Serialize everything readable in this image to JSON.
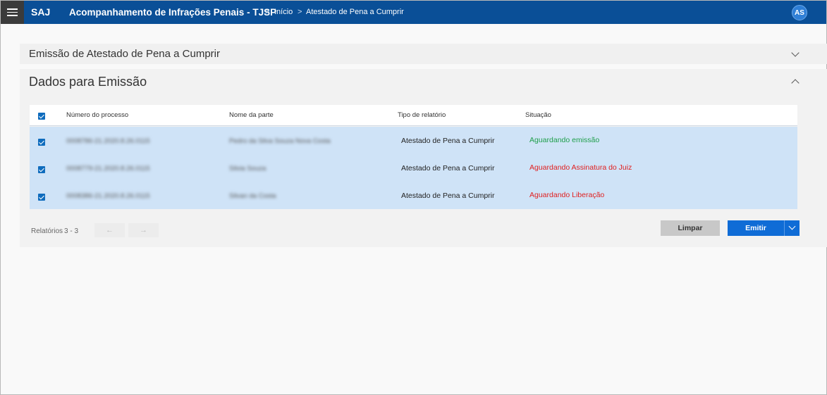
{
  "header": {
    "brand": "SAJ",
    "title": "Acompanhamento de Infrações Penais - TJSP",
    "breadcrumb": [
      {
        "label": "Início"
      },
      {
        "label": "Atestado de Pena a Cumprir"
      }
    ],
    "separator": ">",
    "avatar": "AS"
  },
  "panels": {
    "emissao_title": "Emissão de Atestado de Pena a Cumprir",
    "dados_title": "Dados para Emissão"
  },
  "table": {
    "headers": [
      "Número do processo",
      "Nome da parte",
      "Tipo de relatório",
      "Situação"
    ],
    "rows": [
      {
        "processo": "0008786-21.2020.8.26.0115",
        "parte": "Pedro da Silva Souza Nova Costa",
        "tipo": "Atestado de Pena a Cumprir",
        "situacao": "Aguardando emissão",
        "status_color": "#1e9e4a"
      },
      {
        "processo": "0008779-21.2020.8.26.0115",
        "parte": "Silvia Souza",
        "tipo": "Atestado de Pena a Cumprir",
        "situacao": "Aguardando Assinatura do Juiz",
        "status_color": "#e02020"
      },
      {
        "processo": "0008386-21.2020.8.26.0115",
        "parte": "Silvan da Costa",
        "tipo": "Atestado de Pena a Cumprir",
        "situacao": "Aguardando Liberação",
        "status_color": "#e02020"
      }
    ]
  },
  "footer": {
    "relatorios_label": "Relatórios",
    "relatorios_count": "3 - 3",
    "prev_glyph": "←",
    "next_glyph": "→",
    "limpar_label": "Limpar",
    "emitir_label": "Emitir"
  },
  "colors": {
    "header_bg": "#0a4f97",
    "row_selected_bg": "#cfe3f7",
    "primary_button": "#0f6cd6",
    "status_ok": "#1e9e4a",
    "status_warn": "#e02020"
  }
}
